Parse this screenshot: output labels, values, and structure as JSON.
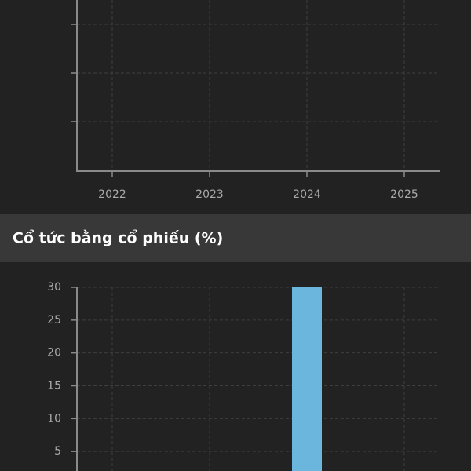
{
  "chart_data": [
    {
      "type": "bar",
      "categories": [
        "2022",
        "2023",
        "2024",
        "2025"
      ],
      "grid": true
    },
    {
      "type": "bar",
      "title": "Cổ tức bằng cổ phiếu (%)",
      "categories": [
        null,
        null,
        null,
        null
      ],
      "values": [
        null,
        null,
        30,
        null
      ],
      "color": "#6bb6dd",
      "ylim": [
        0,
        30
      ],
      "yticks": [
        5,
        10,
        15,
        20,
        25,
        30
      ],
      "grid": true
    }
  ]
}
